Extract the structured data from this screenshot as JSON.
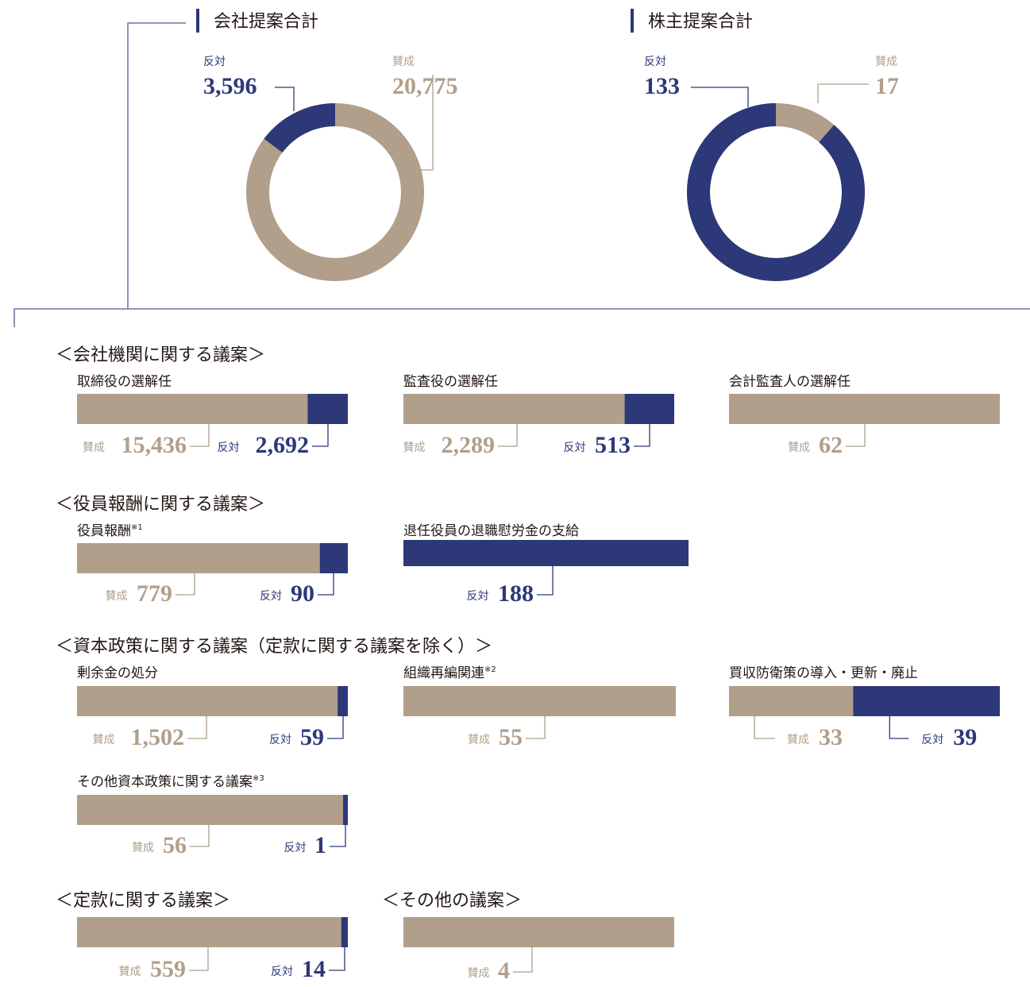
{
  "colors": {
    "approve": "#b19f8b",
    "oppose": "#2c3878",
    "line": "#4a5a8a",
    "text": "#231815"
  },
  "chart_data": [
    {
      "type": "pie",
      "variant": "donut",
      "title": "会社提案合計",
      "slices": [
        {
          "label": "賛成",
          "value": 20775,
          "display": "20,775"
        },
        {
          "label": "反対",
          "value": 3596,
          "display": "3,596"
        }
      ]
    },
    {
      "type": "pie",
      "variant": "donut",
      "title": "株主提案合計",
      "slices": [
        {
          "label": "賛成",
          "value": 17,
          "display": "17"
        },
        {
          "label": "反対",
          "value": 133,
          "display": "133"
        }
      ]
    },
    {
      "type": "bar",
      "orientation": "horizontal",
      "stacked": true,
      "categories": [
        "取締役の選解任",
        "監査役の選解任",
        "会計監査人の選解任",
        "役員報酬",
        "退任役員の退職慰労金の支給",
        "剰余金の処分",
        "組織再編関連",
        "買収防衛策の導入・更新・廃止",
        "その他資本政策に関する議案",
        "定款に関する議案",
        "その他の議案"
      ],
      "series": [
        {
          "name": "賛成",
          "values": [
            15436,
            2289,
            62,
            779,
            0,
            1502,
            55,
            33,
            56,
            559,
            4
          ]
        },
        {
          "name": "反対",
          "values": [
            2692,
            513,
            0,
            90,
            188,
            59,
            0,
            39,
            1,
            14,
            0
          ]
        }
      ]
    }
  ],
  "sections": {
    "s1": "＜会社機関に関する議案＞",
    "s2": "＜役員報酬に関する議案＞",
    "s3": "＜資本政策に関する議案（定款に関する議案を除く）＞",
    "s4": "＜定款に関する議案＞",
    "s5": "＜その他の議案＞"
  },
  "bars": [
    {
      "label": "取締役の選解任",
      "note": "",
      "yes": 15436,
      "no": 2692,
      "yes_text": "15,436",
      "no_text": "2,692"
    },
    {
      "label": "監査役の選解任",
      "note": "",
      "yes": 2289,
      "no": 513,
      "yes_text": "2,289",
      "no_text": "513"
    },
    {
      "label": "会計監査人の選解任",
      "note": "",
      "yes": 62,
      "no": 0,
      "yes_text": "62",
      "no_text": ""
    },
    {
      "label": "役員報酬",
      "note": "※1",
      "yes": 779,
      "no": 90,
      "yes_text": "779",
      "no_text": "90"
    },
    {
      "label": "退任役員の退職慰労金の支給",
      "note": "",
      "yes": 0,
      "no": 188,
      "yes_text": "",
      "no_text": "188"
    },
    {
      "label": "剰余金の処分",
      "note": "",
      "yes": 1502,
      "no": 59,
      "yes_text": "1,502",
      "no_text": "59"
    },
    {
      "label": "組織再編関連",
      "note": "※2",
      "yes": 55,
      "no": 0,
      "yes_text": "55",
      "no_text": ""
    },
    {
      "label": "買収防衛策の導入・更新・廃止",
      "note": "",
      "yes": 33,
      "no": 39,
      "yes_text": "33",
      "no_text": "39"
    },
    {
      "label": "その他資本政策に関する議案",
      "note": "※3",
      "yes": 56,
      "no": 1,
      "yes_text": "56",
      "no_text": "1"
    },
    {
      "label": "",
      "note": "",
      "yes": 559,
      "no": 14,
      "yes_text": "559",
      "no_text": "14"
    },
    {
      "label": "",
      "note": "",
      "yes": 4,
      "no": 0,
      "yes_text": "4",
      "no_text": ""
    }
  ],
  "labels": {
    "approve": "賛成",
    "oppose": "反対"
  }
}
